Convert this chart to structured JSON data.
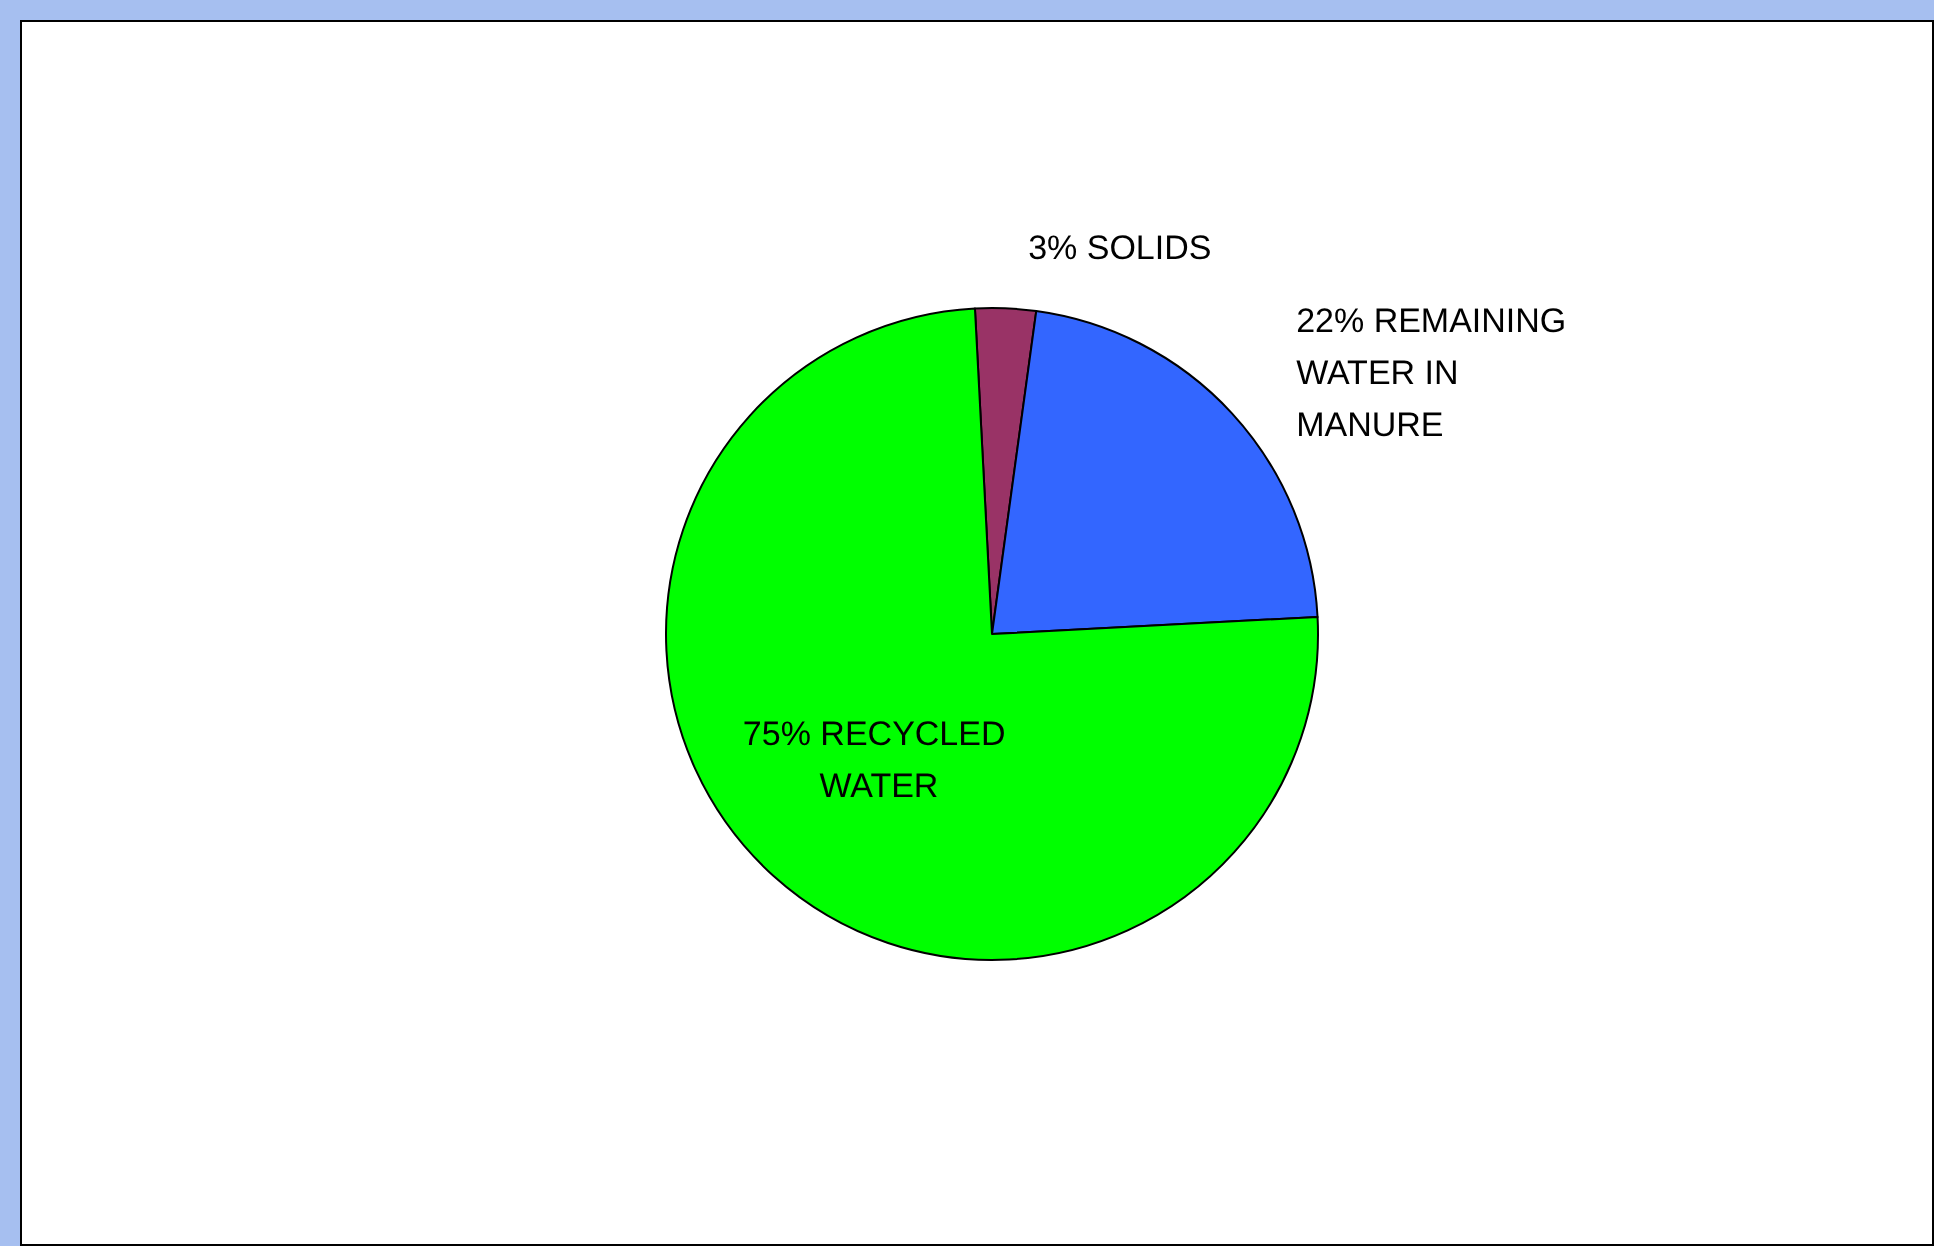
{
  "chart_data": {
    "type": "pie",
    "categories": [
      "SOLIDS",
      "REMAINING WATER IN MANURE",
      "RECYCLED WATER"
    ],
    "values": [
      3,
      22,
      75
    ],
    "colors": [
      "#993366",
      "#3366ff",
      "#00ff00"
    ],
    "value_labels": [
      "3%",
      "22%",
      "75%"
    ],
    "legend": false
  }
}
